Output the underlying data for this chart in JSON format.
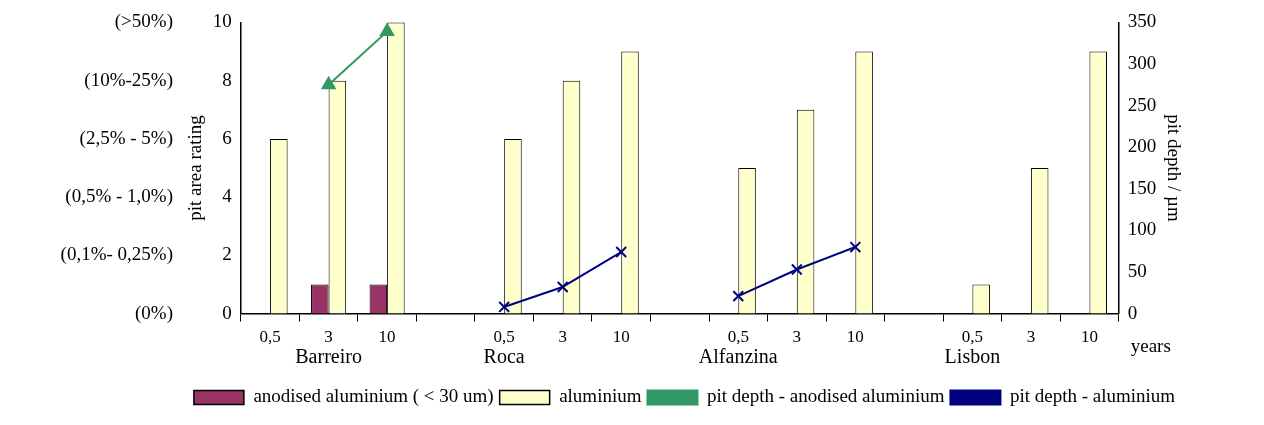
{
  "chart_data": {
    "type": "bar",
    "categories": [
      "0,5",
      "3",
      "10",
      null,
      "0,5",
      "3",
      "10",
      null,
      "0,5",
      "3",
      "10",
      null,
      "0,5",
      "3",
      "10"
    ],
    "xlabel": "years",
    "ylabel": "pit area rating",
    "y2label": "pit depth / µm",
    "ylim": [
      0,
      10
    ],
    "yticks": [
      0,
      2,
      4,
      6,
      8,
      10
    ],
    "y2lim": [
      0,
      350
    ],
    "y2ticks": [
      0,
      50,
      100,
      150,
      200,
      250,
      300,
      350
    ],
    "annotations": [
      "(0%)",
      "(0,1%- 0,25%)",
      "(0,5% - 1,0%)",
      "(2,5% - 5%)",
      "(10%-25%)",
      "(>50%)",
      "Barreiro",
      "Roca",
      "Alfanzina",
      "Lisbon"
    ],
    "legend": "bottom",
    "grid": false,
    "series": [
      {
        "name": "anodised aluminium ( < 30 um)",
        "type": "bar",
        "color": "#993366",
        "values": [
          null,
          1,
          1,
          null,
          null,
          null,
          null,
          null,
          null,
          null,
          null,
          null,
          null,
          null,
          null
        ]
      },
      {
        "name": "aluminium",
        "type": "bar",
        "color": "#ffffcc",
        "values": [
          6,
          8,
          10,
          null,
          6,
          8,
          9,
          null,
          5,
          7,
          9,
          null,
          1,
          5,
          9
        ]
      },
      {
        "name": "pit depth - anodised aluminium",
        "type": "line",
        "axis": "y2",
        "marker": "triangle",
        "color": "#339966",
        "values": [
          null,
          275,
          339,
          null,
          null,
          null,
          null,
          null,
          null,
          null,
          null,
          null,
          null,
          null,
          null
        ]
      },
      {
        "name": "pit depth - aluminium",
        "type": "line",
        "axis": "y2",
        "marker": "cross",
        "color": "#000080",
        "values": [
          null,
          null,
          null,
          null,
          8,
          32,
          74,
          null,
          21,
          53,
          80,
          null,
          null,
          null,
          null
        ]
      }
    ]
  }
}
